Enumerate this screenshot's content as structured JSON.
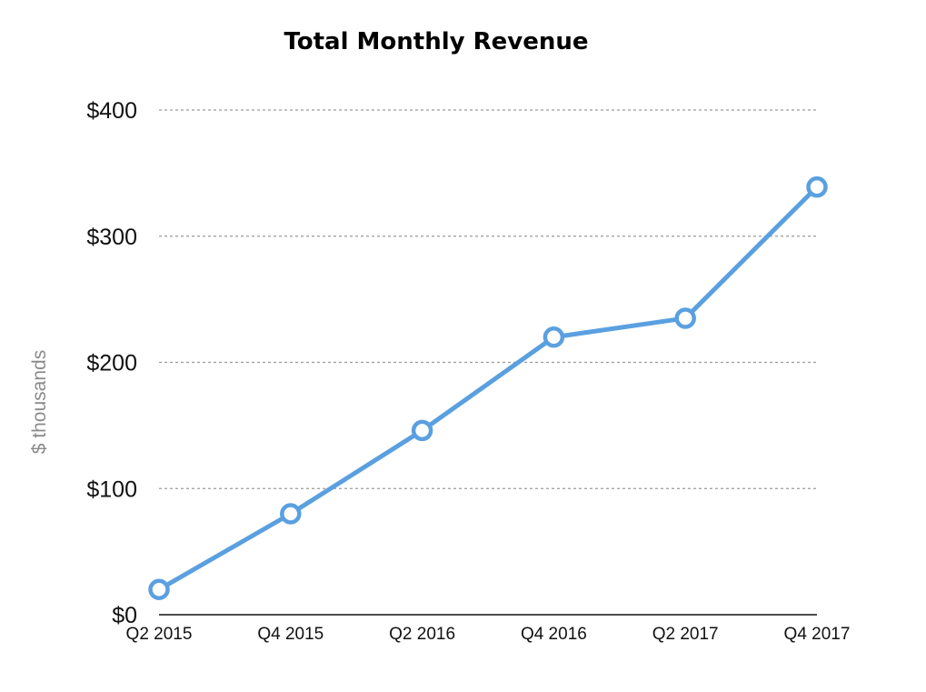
{
  "chart_data": {
    "type": "line",
    "title": "Total Monthly Revenue",
    "xlabel": "",
    "ylabel": "$ thousands",
    "categories": [
      "Q2 2015",
      "Q4 2015",
      "Q2 2016",
      "Q4 2016",
      "Q2 2017",
      "Q4 2017"
    ],
    "series": [
      {
        "name": "Total Monthly Revenue",
        "values": [
          20,
          80,
          146,
          220,
          235,
          339
        ],
        "color": "#5aa0e0"
      }
    ],
    "ylim": [
      0,
      400
    ],
    "yticks": [
      {
        "value": 0,
        "label": "$0"
      },
      {
        "value": 100,
        "label": "$100"
      },
      {
        "value": 200,
        "label": "$200"
      },
      {
        "value": 300,
        "label": "$300"
      },
      {
        "value": 400,
        "label": "$400"
      }
    ],
    "grid": true,
    "marker_fill": "#ffffff"
  }
}
